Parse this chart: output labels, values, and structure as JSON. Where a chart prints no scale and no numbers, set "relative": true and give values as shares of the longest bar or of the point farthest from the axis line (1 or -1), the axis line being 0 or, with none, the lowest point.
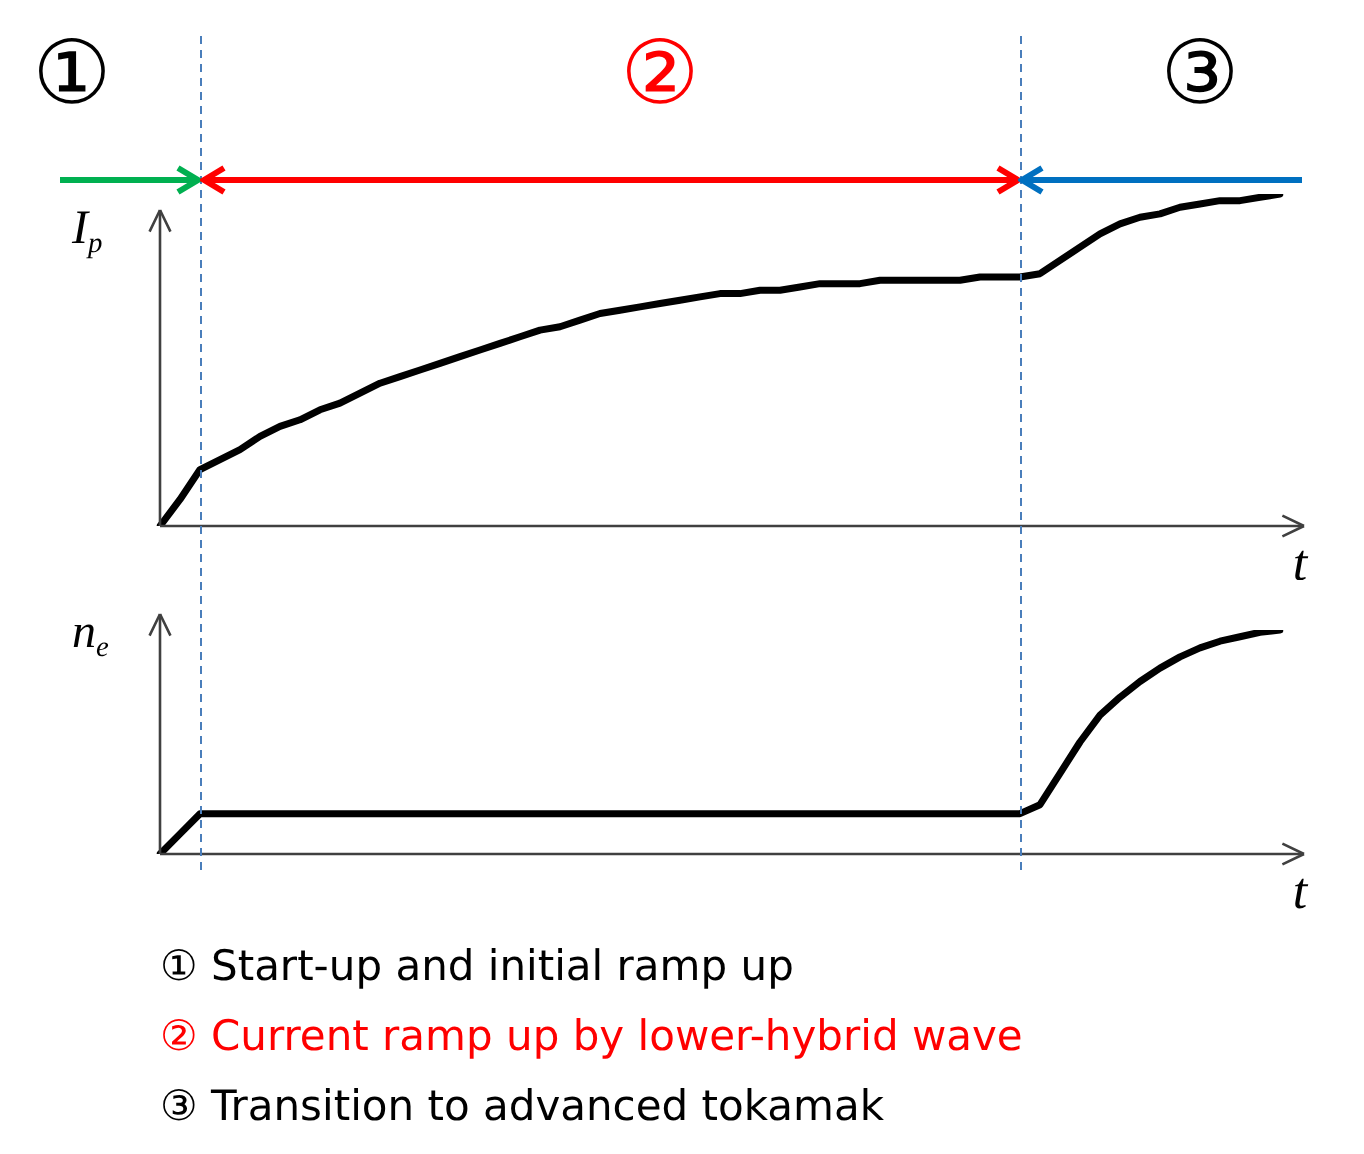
{
  "chart_data": [
    {
      "type": "line",
      "relative": true,
      "xlabel": "t",
      "ylabel": "I$_{p}$",
      "legend": false,
      "marker": "none",
      "categories": [
        null,
        null,
        null,
        null,
        null,
        null,
        null,
        null,
        null,
        null,
        null,
        null,
        null,
        null,
        null,
        null,
        null,
        null,
        null,
        null,
        null,
        null,
        null,
        null,
        null,
        null,
        null,
        null,
        null,
        null,
        null,
        null,
        null,
        null,
        null,
        null,
        null,
        null,
        null,
        null,
        null,
        null,
        null,
        null,
        null,
        null,
        null,
        null,
        null,
        null,
        null,
        null,
        null,
        null,
        null,
        null,
        null
      ],
      "series": [
        {
          "color": "#000000",
          "values": [
            0,
            0.08,
            0.17,
            0.2,
            0.23,
            0.27,
            0.3,
            0.32,
            0.35,
            0.37,
            0.4,
            0.43,
            0.45,
            0.47,
            0.49,
            0.51,
            0.53,
            0.55,
            0.57,
            0.59,
            0.6,
            0.62,
            0.64,
            0.65,
            0.66,
            0.67,
            0.68,
            0.69,
            0.7,
            0.7,
            0.71,
            0.71,
            0.72,
            0.73,
            0.73,
            0.73,
            0.74,
            0.74,
            0.74,
            0.74,
            0.74,
            0.75,
            0.75,
            0.75,
            0.76,
            0.8,
            0.84,
            0.88,
            0.91,
            0.93,
            0.94,
            0.96,
            0.97,
            0.98,
            0.98,
            0.99,
            1
          ]
        }
      ],
      "annotations": [
        "①",
        "②",
        "③"
      ]
    },
    {
      "type": "line",
      "relative": true,
      "xlabel": "t",
      "ylabel": "n$_{e}$",
      "legend": false,
      "marker": "none",
      "categories": [
        null,
        null,
        null,
        null,
        null,
        null,
        null,
        null,
        null,
        null,
        null,
        null,
        null,
        null,
        null,
        null,
        null,
        null,
        null,
        null,
        null,
        null,
        null,
        null,
        null,
        null,
        null,
        null,
        null,
        null,
        null,
        null,
        null,
        null,
        null,
        null,
        null,
        null,
        null,
        null,
        null,
        null,
        null,
        null,
        null,
        null,
        null,
        null,
        null,
        null,
        null,
        null,
        null,
        null,
        null,
        null,
        null
      ],
      "series": [
        {
          "color": "#000000",
          "values": [
            0,
            0.09,
            0.18,
            0.18,
            0.18,
            0.18,
            0.18,
            0.18,
            0.18,
            0.18,
            0.18,
            0.18,
            0.18,
            0.18,
            0.18,
            0.18,
            0.18,
            0.18,
            0.18,
            0.18,
            0.18,
            0.18,
            0.18,
            0.18,
            0.18,
            0.18,
            0.18,
            0.18,
            0.18,
            0.18,
            0.18,
            0.18,
            0.18,
            0.18,
            0.18,
            0.18,
            0.18,
            0.18,
            0.18,
            0.18,
            0.18,
            0.18,
            0.18,
            0.18,
            0.22,
            0.36,
            0.5,
            0.62,
            0.7,
            0.77,
            0.83,
            0.88,
            0.92,
            0.95,
            0.97,
            0.99,
            1
          ]
        }
      ],
      "annotations": [
        "① Start-up and initial ramp up",
        "② Current ramp up by lower-hybrid wave",
        "③ Transition to advanced tokamak"
      ]
    }
  ]
}
